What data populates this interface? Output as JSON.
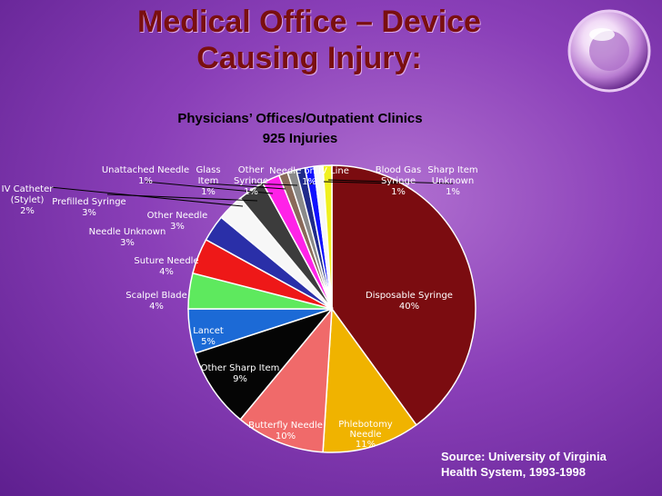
{
  "slide": {
    "title_line1": "Medical Office – Device",
    "title_line2": "Causing Injury:",
    "source_line1": "Source: University of Virginia",
    "source_line2": "Health System, 1993-1998"
  },
  "chart_data": {
    "type": "pie",
    "title": "Physicians’ Offices/Outpatient Clinics",
    "subtitle": "925 Injuries",
    "slices": [
      {
        "name": "Disposable Syringe",
        "value": 40,
        "label": "40%",
        "color": "#7b0c10"
      },
      {
        "name": "Phlebotomy Needle",
        "value": 11,
        "label": "11%",
        "color": "#f0b300"
      },
      {
        "name": "Butterfly Needle",
        "value": 10,
        "label": "10%",
        "color": "#f06a6a"
      },
      {
        "name": "Other Sharp Item",
        "value": 9,
        "label": "9%",
        "color": "#050505"
      },
      {
        "name": "Lancet",
        "value": 5,
        "label": "5%",
        "color": "#1c6ad6"
      },
      {
        "name": "Scalpel Blade",
        "value": 4,
        "label": "4%",
        "color": "#5ee95e"
      },
      {
        "name": "Suture Needle",
        "value": 4,
        "label": "4%",
        "color": "#ee1818"
      },
      {
        "name": "Needle Unknown",
        "value": 3,
        "label": "3%",
        "color": "#2a2fa8"
      },
      {
        "name": "Other Needle",
        "value": 3,
        "label": "3%",
        "color": "#f7f7f7"
      },
      {
        "name": "Prefilled Syringe",
        "value": 3,
        "label": "3%",
        "color": "#3c3c3c"
      },
      {
        "name": "IV Catheter (Stylet)",
        "value": 2,
        "label": "2%",
        "color": "#ff22e8"
      },
      {
        "name": "Unattached Needle",
        "value": 1,
        "label": "1%",
        "color": "#8a6a5a"
      },
      {
        "name": "Glass Item",
        "value": 1,
        "label": "1%",
        "color": "#8a8a8a"
      },
      {
        "name": "Other Syringe",
        "value": 1,
        "label": "1%",
        "color": "#1f2a8a"
      },
      {
        "name": "Needle on IV Line",
        "value": 1,
        "label": "1%",
        "color": "#1010ff"
      },
      {
        "name": "Blood Gas Syringe",
        "value": 1,
        "label": "1%",
        "color": "#f8f8f8"
      },
      {
        "name": "Sharp Item Unknown",
        "value": 1,
        "label": "1%",
        "color": "#f0f020"
      }
    ]
  }
}
